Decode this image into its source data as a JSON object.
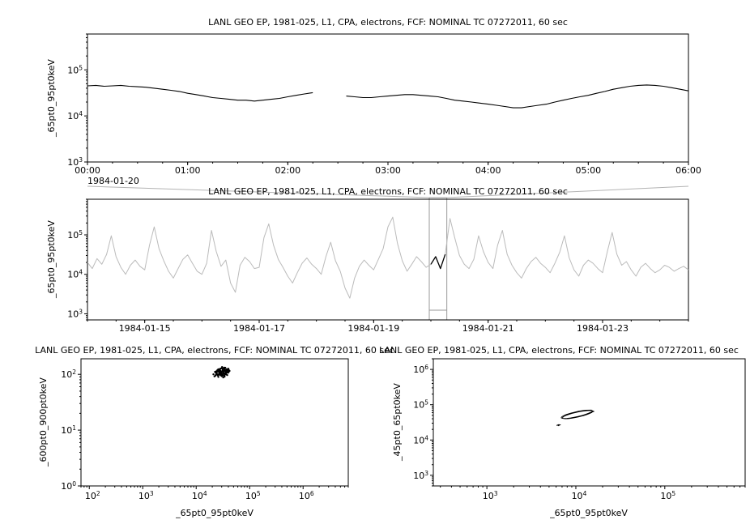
{
  "window": {
    "background": "#ffffff",
    "series_color": "#000000",
    "context_series_color": "#bbbbbb"
  },
  "chart_data": [
    {
      "id": "detail",
      "type": "line",
      "title": "LANL GEO EP, 1981-025, L1, CPA, electrons, FCF: NOMINAL TC 07272011, 60 sec",
      "ylabel": "_65pt0_95pt0keV",
      "x_axis": {
        "scale": "linear",
        "unit": "hours",
        "domain": [
          0,
          6
        ],
        "minor_step": 0.25,
        "context_label": "1984-01-20",
        "ticks": [
          {
            "v": 0,
            "label": "00:00"
          },
          {
            "v": 1,
            "label": "01:00"
          },
          {
            "v": 2,
            "label": "02:00"
          },
          {
            "v": 3,
            "label": "03:00"
          },
          {
            "v": 4,
            "label": "04:00"
          },
          {
            "v": 5,
            "label": "05:00"
          },
          {
            "v": 6,
            "label": "06:00"
          }
        ]
      },
      "y_axis": {
        "scale": "log",
        "domain": [
          1000,
          600000
        ]
      },
      "series": [
        {
          "name": "electron-flux-65-95keV",
          "mode": "line",
          "color": "#000000",
          "width": 1.1,
          "x_start": 0,
          "x_step": 0.0833333,
          "y": [
            45000,
            46000,
            44000,
            45000,
            46000,
            44000,
            43000,
            42000,
            40000,
            38000,
            36000,
            34000,
            31000,
            29000,
            27000,
            25000,
            24000,
            23000,
            22000,
            22000,
            21000,
            22000,
            23000,
            24000,
            26000,
            28000,
            30000,
            32000,
            null,
            null,
            null,
            27000,
            26000,
            25000,
            25000,
            26000,
            27000,
            28000,
            29000,
            29000,
            28000,
            27000,
            26000,
            24000,
            22000,
            21000,
            20000,
            19000,
            18000,
            17000,
            16000,
            15000,
            15000,
            16000,
            17000,
            18000,
            20000,
            22000,
            24000,
            26000,
            28000,
            31000,
            34000,
            38000,
            41000,
            44000,
            46000,
            47000,
            46000,
            44000,
            41000,
            38000,
            35000
          ]
        }
      ]
    },
    {
      "id": "context",
      "type": "line",
      "title": "LANL GEO EP, 1981-025, L1, CPA, electrons, FCF: NOMINAL TC 07272011, 60 sec",
      "ylabel": "_65pt0_95pt0keV",
      "x_axis": {
        "scale": "linear",
        "unit": "days",
        "domain": [
          14.0,
          24.5
        ],
        "minor_step": 0.5,
        "ticks": [
          {
            "v": 15,
            "label": "1984-01-15"
          },
          {
            "v": 17,
            "label": "1984-01-17"
          },
          {
            "v": 19,
            "label": "1984-01-19"
          },
          {
            "v": 21,
            "label": "1984-01-21"
          },
          {
            "v": 23,
            "label": "1984-01-23"
          }
        ]
      },
      "y_axis": {
        "scale": "log",
        "domain": [
          700,
          800000
        ]
      },
      "selection": {
        "start": 20.0,
        "end": 20.25,
        "linked_panel": "detail",
        "color": "#999999",
        "connector_color": "#b3b3b3"
      },
      "series": [
        {
          "name": "electron-flux-65-95keV-10day",
          "mode": "line",
          "color": "#bbbbbb",
          "width": 1,
          "x_start": 14.0,
          "x_step": 0.0833333,
          "y": [
            20000,
            14000,
            25000,
            18000,
            32000,
            95000,
            28000,
            15000,
            10000,
            17000,
            23000,
            16000,
            13000,
            55000,
            160000,
            45000,
            22000,
            12000,
            8000,
            14000,
            24000,
            31000,
            19000,
            12000,
            10000,
            19000,
            130000,
            38000,
            16000,
            23000,
            6000,
            3500,
            17000,
            27000,
            21000,
            14000,
            15000,
            85000,
            190000,
            55000,
            24000,
            15000,
            9000,
            6000,
            11000,
            19000,
            26000,
            18000,
            14000,
            10000,
            28000,
            65000,
            22000,
            12000,
            4500,
            2500,
            8000,
            16000,
            23000,
            17000,
            13000,
            24000,
            45000,
            160000,
            280000,
            60000,
            22000,
            12000,
            18000,
            28000,
            21000,
            15000,
            18000,
            28000,
            14000,
            32000,
            260000,
            85000,
            30000,
            18000,
            14000,
            24000,
            95000,
            38000,
            20000,
            14000,
            55000,
            130000,
            32000,
            17000,
            11000,
            8000,
            14000,
            21000,
            27000,
            19000,
            15000,
            11000,
            19000,
            36000,
            95000,
            26000,
            13000,
            9000,
            17000,
            23000,
            19000,
            14000,
            11000,
            38000,
            115000,
            32000,
            17000,
            21000,
            13000,
            9000,
            15000,
            19000,
            14000,
            11000,
            13000,
            17000,
            15000,
            12000,
            14000,
            16000,
            13000
          ]
        },
        {
          "name": "selected-interval-highlight",
          "mode": "line",
          "color": "#000000",
          "width": 1.3,
          "x_start": 20.0,
          "x_step": 0.0833333,
          "y": [
            18000,
            28000,
            14000,
            32000
          ]
        }
      ]
    },
    {
      "id": "scatter1",
      "type": "scatter",
      "title": "LANL GEO EP, 1981-025, L1, CPA, electrons, FCF: NOMINAL TC 07272011, 60 sec",
      "xlabel": "_65pt0_95pt0keV",
      "ylabel": "_600pt0_900pt0keV",
      "x_axis": {
        "scale": "log",
        "domain": [
          70,
          7000000
        ]
      },
      "y_axis": {
        "scale": "log",
        "domain": [
          1,
          190
        ]
      },
      "series": [
        {
          "name": "flux-correlation-600-900",
          "mode": "scatter",
          "color": "#000000",
          "radius": 1.2,
          "points": [
            [
              25000,
              100
            ],
            [
              27000,
              105
            ],
            [
              30000,
              110
            ],
            [
              32000,
              108
            ],
            [
              28000,
              98
            ],
            [
              26000,
              112
            ],
            [
              31000,
              115
            ],
            [
              35000,
              118
            ],
            [
              33000,
              104
            ],
            [
              29000,
              96
            ],
            [
              24000,
              103
            ],
            [
              36000,
              120
            ],
            [
              38000,
              116
            ],
            [
              27500,
              109
            ],
            [
              30500,
              101
            ],
            [
              23000,
              95
            ],
            [
              34000,
              125
            ],
            [
              37000,
              112
            ],
            [
              26500,
              99
            ],
            [
              29500,
              107
            ],
            [
              31500,
              121
            ],
            [
              28500,
              113
            ],
            [
              25500,
              97
            ],
            [
              32500,
              118
            ],
            [
              35500,
              108
            ],
            [
              22000,
              92
            ],
            [
              39000,
              114
            ],
            [
              40000,
              122
            ],
            [
              30000,
              128
            ],
            [
              27000,
              117
            ],
            [
              33500,
              95
            ],
            [
              36500,
              105
            ],
            [
              24500,
              110
            ],
            [
              31000,
              99
            ],
            [
              28000,
              124
            ],
            [
              34500,
              116
            ],
            [
              26000,
              90
            ],
            [
              38500,
              119
            ],
            [
              29000,
              111
            ],
            [
              32000,
              102
            ],
            [
              35000,
              131
            ],
            [
              23500,
              98
            ],
            [
              40500,
              110
            ],
            [
              27500,
              122
            ],
            [
              30500,
              94
            ],
            [
              33000,
              113
            ],
            [
              25000,
              119
            ],
            [
              36000,
              100
            ],
            [
              28500,
              127
            ],
            [
              31500,
              96
            ],
            [
              42000,
              115
            ],
            [
              21000,
              100
            ],
            [
              37500,
              124
            ],
            [
              29500,
              104
            ],
            [
              34000,
              91
            ],
            [
              26500,
              120
            ],
            [
              39500,
              107
            ],
            [
              24000,
              114
            ],
            [
              32500,
              129
            ],
            [
              30000,
              93
            ],
            [
              35500,
              112
            ],
            [
              27000,
              101
            ],
            [
              41000,
              118
            ],
            [
              23000,
              108
            ],
            [
              38000,
              97
            ],
            [
              31000,
              125
            ],
            [
              28000,
              106
            ],
            [
              33500,
              132
            ],
            [
              25500,
              95
            ],
            [
              36500,
              117
            ],
            [
              29000,
              102
            ],
            [
              40000,
              126
            ],
            [
              22500,
              111
            ],
            [
              34500,
              99
            ],
            [
              26000,
              123
            ],
            [
              37000,
              109
            ],
            [
              30500,
              135
            ],
            [
              32000,
              88
            ],
            [
              28500,
              116
            ],
            [
              35000,
              103
            ]
          ]
        }
      ]
    },
    {
      "id": "scatter2",
      "type": "scatter",
      "title": "LANL GEO EP, 1981-025, L1, CPA, electrons, FCF: NOMINAL TC 07272011, 60 sec",
      "xlabel": "_65pt0_95pt0keV",
      "ylabel": "_45pt0_65pt0keV",
      "x_axis": {
        "scale": "log",
        "domain": [
          250,
          800000
        ]
      },
      "y_axis": {
        "scale": "log",
        "domain": [
          500,
          2000000
        ]
      },
      "series": [
        {
          "name": "flux-correlation-45-65-trajectory",
          "mode": "line",
          "color": "#000000",
          "width": 0.9,
          "points": [
            [
              15500,
              66100
            ],
            [
              15100,
              67900
            ],
            [
              14400,
              68700
            ],
            [
              13400,
              68100
            ],
            [
              12200,
              66400
            ],
            [
              11100,
              63700
            ],
            [
              10000,
              60300
            ],
            [
              9050,
              56500
            ],
            [
              8280,
              52700
            ],
            [
              7690,
              49200
            ],
            [
              7290,
              46000
            ],
            [
              7100,
              43500
            ],
            [
              7080,
              41700
            ],
            [
              7260,
              40500
            ],
            [
              7640,
              40100
            ],
            [
              8200,
              40400
            ],
            [
              8960,
              41500
            ],
            [
              9890,
              43300
            ],
            [
              10960,
              45700
            ],
            [
              12110,
              48800
            ],
            [
              13240,
              52200
            ],
            [
              14250,
              56100
            ],
            [
              15030,
              59700
            ],
            [
              15450,
              63200
            ],
            [
              16000,
              64500
            ],
            [
              15600,
              66000
            ],
            [
              14900,
              70500
            ],
            [
              13000,
              70000
            ],
            [
              11900,
              68000
            ],
            [
              10800,
              65500
            ],
            [
              9700,
              61500
            ],
            [
              8800,
              57800
            ],
            [
              8000,
              54000
            ],
            [
              7500,
              50500
            ],
            [
              7100,
              47000
            ],
            [
              6900,
              44500
            ],
            [
              6850,
              42500
            ],
            [
              7050,
              41200
            ],
            [
              7400,
              40700
            ],
            [
              7950,
              40900
            ],
            [
              8700,
              42100
            ],
            [
              9600,
              44000
            ],
            [
              10600,
              46500
            ],
            [
              11800,
              49800
            ],
            [
              12900,
              53300
            ],
            [
              13900,
              57300
            ],
            [
              14700,
              61000
            ],
            [
              15200,
              64000
            ],
            [
              15800,
              65500
            ],
            null,
            [
              6500,
              27500
            ],
            [
              6100,
              26000
            ],
            [
              6700,
              27000
            ],
            [
              6300,
              25000
            ]
          ]
        }
      ]
    }
  ]
}
